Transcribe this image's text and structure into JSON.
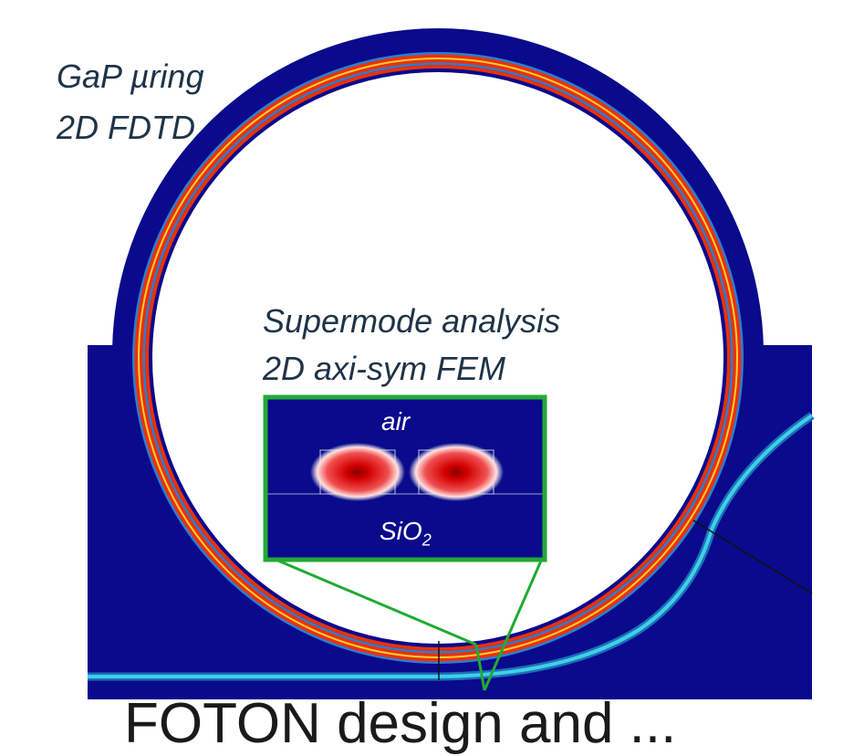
{
  "labels": {
    "ring_title_line1": "GaP µring",
    "ring_title_line2": "2D FDTD",
    "supermode_line1": "Supermode analysis",
    "supermode_line2": "2D axi-sym FEM",
    "inset_top": "air",
    "inset_bottom_base": "SiO",
    "inset_bottom_sub": "2",
    "bottom_caption": "FOTON design and ..."
  },
  "colors": {
    "field_background": "#0a0a8c",
    "ring_mode": "#e8320c",
    "ring_mode_core": "#ffcc33",
    "bus_waveguide": "#3fd0e8",
    "inset_frame": "#22aa33",
    "label_text": "#1f3347"
  }
}
